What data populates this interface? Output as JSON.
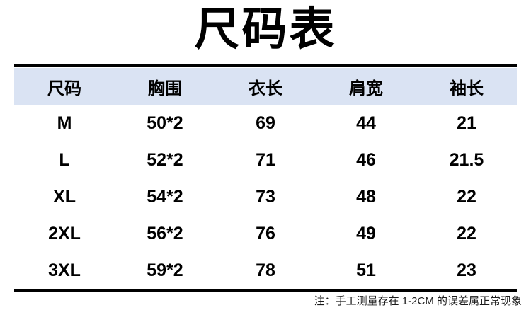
{
  "page": {
    "title": "尺码表"
  },
  "table": {
    "headers": [
      "尺码",
      "胸围",
      "衣长",
      "肩宽",
      "袖长"
    ],
    "rows": [
      [
        "M",
        "50*2",
        "69",
        "44",
        "21"
      ],
      [
        "L",
        "52*2",
        "71",
        "46",
        "21.5"
      ],
      [
        "XL",
        "54*2",
        "73",
        "48",
        "22"
      ],
      [
        "2XL",
        "56*2",
        "76",
        "49",
        "22"
      ],
      [
        "3XL",
        "59*2",
        "78",
        "51",
        "23"
      ]
    ]
  },
  "footer": {
    "note": "注：手工测量存在 1-2CM 的误差属正常现象"
  },
  "colors": {
    "background": "#ffffff",
    "header_bg": "#dae3f3",
    "border": "#000000",
    "text": "#000000",
    "note_text": "#1a1a1a"
  }
}
